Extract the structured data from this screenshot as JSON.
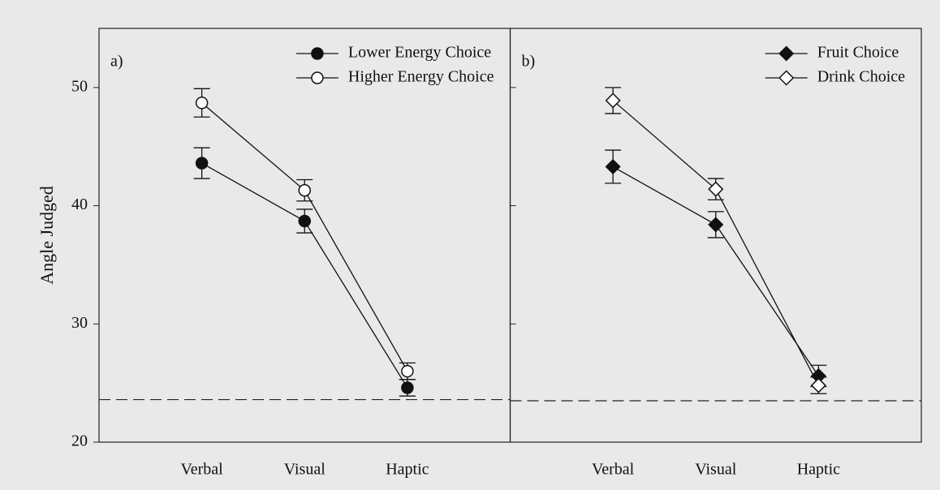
{
  "chart_data": [
    {
      "type": "line",
      "label": "a)",
      "ylabel": "Angle Judged",
      "categories": [
        "Verbal",
        "Visual",
        "Haptic"
      ],
      "series": [
        {
          "name": "Lower Energy Choice",
          "marker": "circle",
          "color": "#111111",
          "fill": "#111111",
          "values": [
            43.6,
            38.7,
            24.6
          ],
          "errors": [
            1.3,
            1.0,
            0.7
          ]
        },
        {
          "name": "Higher Energy Choice",
          "marker": "circle",
          "color": "#111111",
          "fill": "#ffffff",
          "values": [
            48.7,
            41.3,
            26.0
          ],
          "errors": [
            1.2,
            0.9,
            0.7
          ]
        }
      ],
      "ylim": [
        20,
        55
      ],
      "yticks": [
        20,
        30,
        40,
        50
      ],
      "reference_line": 23.6,
      "legend": "upper right"
    },
    {
      "type": "line",
      "label": "b)",
      "categories": [
        "Verbal",
        "Visual",
        "Haptic"
      ],
      "series": [
        {
          "name": "Fruit Choice",
          "marker": "diamond",
          "color": "#111111",
          "fill": "#111111",
          "values": [
            43.3,
            38.4,
            25.6
          ],
          "errors": [
            1.4,
            1.1,
            0.9
          ]
        },
        {
          "name": "Drink Choice",
          "marker": "diamond",
          "color": "#111111",
          "fill": "#ffffff",
          "values": [
            48.9,
            41.4,
            24.8
          ],
          "errors": [
            1.1,
            0.9,
            0.7
          ]
        }
      ],
      "ylim": [
        20,
        55
      ],
      "reference_line": 23.5,
      "legend": "upper right"
    }
  ]
}
